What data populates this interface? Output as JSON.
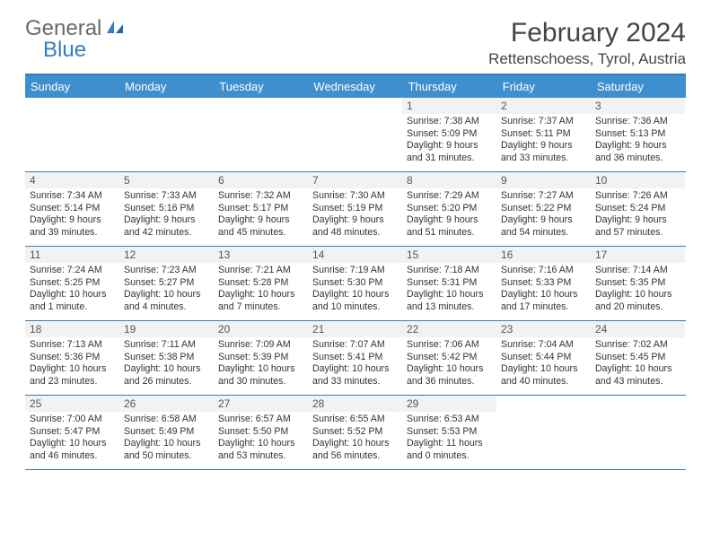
{
  "logo": {
    "text_general": "General",
    "text_blue": "Blue"
  },
  "title": "February 2024",
  "location": "Rettenschoess, Tyrol, Austria",
  "colors": {
    "header_bg": "#3f8fce",
    "header_border": "#2f7ec2",
    "daynum_bg": "#f2f2f2",
    "text": "#333333",
    "logo_blue": "#2f7ec2",
    "logo_gray": "#6a6a6a"
  },
  "day_names": [
    "Sunday",
    "Monday",
    "Tuesday",
    "Wednesday",
    "Thursday",
    "Friday",
    "Saturday"
  ],
  "weeks": [
    [
      {
        "n": "",
        "empty": true
      },
      {
        "n": "",
        "empty": true
      },
      {
        "n": "",
        "empty": true
      },
      {
        "n": "",
        "empty": true
      },
      {
        "n": "1",
        "sr": "7:38 AM",
        "ss": "5:09 PM",
        "dl": "9 hours and 31 minutes."
      },
      {
        "n": "2",
        "sr": "7:37 AM",
        "ss": "5:11 PM",
        "dl": "9 hours and 33 minutes."
      },
      {
        "n": "3",
        "sr": "7:36 AM",
        "ss": "5:13 PM",
        "dl": "9 hours and 36 minutes."
      }
    ],
    [
      {
        "n": "4",
        "sr": "7:34 AM",
        "ss": "5:14 PM",
        "dl": "9 hours and 39 minutes."
      },
      {
        "n": "5",
        "sr": "7:33 AM",
        "ss": "5:16 PM",
        "dl": "9 hours and 42 minutes."
      },
      {
        "n": "6",
        "sr": "7:32 AM",
        "ss": "5:17 PM",
        "dl": "9 hours and 45 minutes."
      },
      {
        "n": "7",
        "sr": "7:30 AM",
        "ss": "5:19 PM",
        "dl": "9 hours and 48 minutes."
      },
      {
        "n": "8",
        "sr": "7:29 AM",
        "ss": "5:20 PM",
        "dl": "9 hours and 51 minutes."
      },
      {
        "n": "9",
        "sr": "7:27 AM",
        "ss": "5:22 PM",
        "dl": "9 hours and 54 minutes."
      },
      {
        "n": "10",
        "sr": "7:26 AM",
        "ss": "5:24 PM",
        "dl": "9 hours and 57 minutes."
      }
    ],
    [
      {
        "n": "11",
        "sr": "7:24 AM",
        "ss": "5:25 PM",
        "dl": "10 hours and 1 minute."
      },
      {
        "n": "12",
        "sr": "7:23 AM",
        "ss": "5:27 PM",
        "dl": "10 hours and 4 minutes."
      },
      {
        "n": "13",
        "sr": "7:21 AM",
        "ss": "5:28 PM",
        "dl": "10 hours and 7 minutes."
      },
      {
        "n": "14",
        "sr": "7:19 AM",
        "ss": "5:30 PM",
        "dl": "10 hours and 10 minutes."
      },
      {
        "n": "15",
        "sr": "7:18 AM",
        "ss": "5:31 PM",
        "dl": "10 hours and 13 minutes."
      },
      {
        "n": "16",
        "sr": "7:16 AM",
        "ss": "5:33 PM",
        "dl": "10 hours and 17 minutes."
      },
      {
        "n": "17",
        "sr": "7:14 AM",
        "ss": "5:35 PM",
        "dl": "10 hours and 20 minutes."
      }
    ],
    [
      {
        "n": "18",
        "sr": "7:13 AM",
        "ss": "5:36 PM",
        "dl": "10 hours and 23 minutes."
      },
      {
        "n": "19",
        "sr": "7:11 AM",
        "ss": "5:38 PM",
        "dl": "10 hours and 26 minutes."
      },
      {
        "n": "20",
        "sr": "7:09 AM",
        "ss": "5:39 PM",
        "dl": "10 hours and 30 minutes."
      },
      {
        "n": "21",
        "sr": "7:07 AM",
        "ss": "5:41 PM",
        "dl": "10 hours and 33 minutes."
      },
      {
        "n": "22",
        "sr": "7:06 AM",
        "ss": "5:42 PM",
        "dl": "10 hours and 36 minutes."
      },
      {
        "n": "23",
        "sr": "7:04 AM",
        "ss": "5:44 PM",
        "dl": "10 hours and 40 minutes."
      },
      {
        "n": "24",
        "sr": "7:02 AM",
        "ss": "5:45 PM",
        "dl": "10 hours and 43 minutes."
      }
    ],
    [
      {
        "n": "25",
        "sr": "7:00 AM",
        "ss": "5:47 PM",
        "dl": "10 hours and 46 minutes."
      },
      {
        "n": "26",
        "sr": "6:58 AM",
        "ss": "5:49 PM",
        "dl": "10 hours and 50 minutes."
      },
      {
        "n": "27",
        "sr": "6:57 AM",
        "ss": "5:50 PM",
        "dl": "10 hours and 53 minutes."
      },
      {
        "n": "28",
        "sr": "6:55 AM",
        "ss": "5:52 PM",
        "dl": "10 hours and 56 minutes."
      },
      {
        "n": "29",
        "sr": "6:53 AM",
        "ss": "5:53 PM",
        "dl": "11 hours and 0 minutes."
      },
      {
        "n": "",
        "empty": true
      },
      {
        "n": "",
        "empty": true
      }
    ]
  ],
  "labels": {
    "sunrise": "Sunrise: ",
    "sunset": "Sunset: ",
    "daylight": "Daylight: "
  }
}
